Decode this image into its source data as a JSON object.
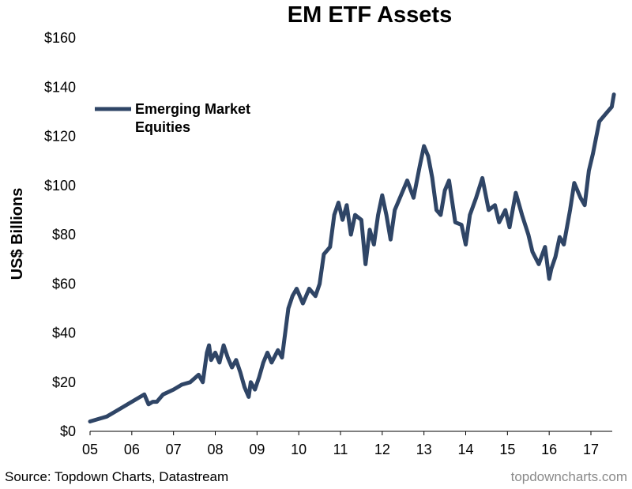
{
  "chart_data": {
    "type": "line",
    "title": "EM ETF Assets",
    "ylabel": "US$ Billions",
    "xlabel": "",
    "ylim": [
      0,
      160
    ],
    "xlim": [
      2005,
      2017.6
    ],
    "y_ticks": [
      0,
      20,
      40,
      60,
      80,
      100,
      120,
      140,
      160
    ],
    "y_tick_labels": [
      "$0",
      "$20",
      "$40",
      "$60",
      "$80",
      "$100",
      "$120",
      "$140",
      "$160"
    ],
    "x_ticks": [
      2005,
      2006,
      2007,
      2008,
      2009,
      2010,
      2011,
      2012,
      2013,
      2014,
      2015,
      2016,
      2017
    ],
    "x_tick_labels": [
      "05",
      "06",
      "07",
      "08",
      "09",
      "10",
      "11",
      "12",
      "13",
      "14",
      "15",
      "16",
      "17"
    ],
    "grid": false,
    "legend_position": "top-left",
    "series": [
      {
        "name": "Emerging Market Equities",
        "color": "#2f4566",
        "x": [
          2005.0,
          2005.2,
          2005.4,
          2005.6,
          2005.8,
          2006.0,
          2006.2,
          2006.3,
          2006.4,
          2006.5,
          2006.6,
          2006.75,
          2007.0,
          2007.2,
          2007.4,
          2007.6,
          2007.7,
          2007.8,
          2007.85,
          2007.9,
          2008.0,
          2008.1,
          2008.2,
          2008.3,
          2008.4,
          2008.5,
          2008.6,
          2008.7,
          2008.8,
          2008.85,
          2008.95,
          2009.05,
          2009.15,
          2009.25,
          2009.35,
          2009.5,
          2009.6,
          2009.75,
          2009.85,
          2009.95,
          2010.1,
          2010.25,
          2010.4,
          2010.5,
          2010.6,
          2010.75,
          2010.85,
          2010.95,
          2011.05,
          2011.15,
          2011.25,
          2011.35,
          2011.5,
          2011.6,
          2011.7,
          2011.8,
          2011.9,
          2012.0,
          2012.1,
          2012.2,
          2012.3,
          2012.45,
          2012.6,
          2012.75,
          2012.9,
          2013.0,
          2013.1,
          2013.2,
          2013.3,
          2013.4,
          2013.5,
          2013.6,
          2013.75,
          2013.9,
          2014.0,
          2014.1,
          2014.25,
          2014.4,
          2014.55,
          2014.7,
          2014.8,
          2014.95,
          2015.05,
          2015.2,
          2015.35,
          2015.5,
          2015.6,
          2015.75,
          2015.9,
          2016.0,
          2016.05,
          2016.15,
          2016.25,
          2016.35,
          2016.5,
          2016.6,
          2016.75,
          2016.85,
          2016.95,
          2017.05,
          2017.2,
          2017.3,
          2017.4,
          2017.5,
          2017.55
        ],
        "values": [
          4,
          5,
          6,
          8,
          10,
          12,
          14,
          15,
          11,
          12,
          12,
          15,
          17,
          19,
          20,
          23,
          20,
          32,
          35,
          29,
          32,
          28,
          35,
          30,
          26,
          29,
          24,
          18,
          14,
          20,
          17,
          22,
          28,
          32,
          28,
          33,
          30,
          50,
          55,
          58,
          52,
          58,
          55,
          60,
          72,
          75,
          88,
          93,
          86,
          92,
          80,
          88,
          86,
          68,
          82,
          76,
          88,
          96,
          88,
          78,
          90,
          96,
          102,
          95,
          108,
          116,
          112,
          103,
          90,
          88,
          98,
          102,
          85,
          84,
          76,
          88,
          95,
          103,
          90,
          92,
          85,
          90,
          83,
          97,
          88,
          80,
          73,
          68,
          75,
          62,
          66,
          71,
          79,
          76,
          90,
          101,
          95,
          92,
          106,
          113,
          126,
          128,
          130,
          132,
          137
        ]
      }
    ]
  },
  "legend": {
    "items": [
      {
        "label_line1": "Emerging Market",
        "label_line2": "Equities"
      }
    ]
  },
  "footer": {
    "source": "Source: Topdown Charts, Datastream",
    "brand": "topdowncharts.com"
  }
}
